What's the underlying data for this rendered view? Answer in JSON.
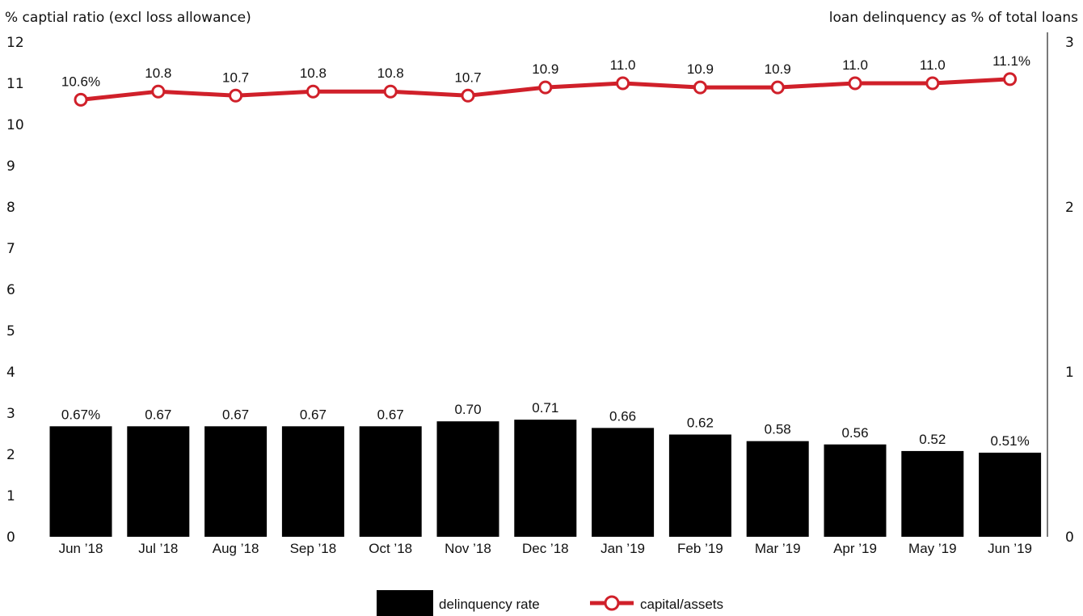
{
  "chart_data": {
    "type": "bar",
    "title": "",
    "categories": [
      "Jun ’18",
      "Jul ’18",
      "Aug ’18",
      "Sep ’18",
      "Oct ’18",
      "Nov ’18",
      "Dec ’18",
      "Jan ’19",
      "Feb ’19",
      "Mar ’19",
      "Apr ’19",
      "May ’19",
      "Jun ’19"
    ],
    "series": [
      {
        "name": "delinquency rate",
        "type": "bar",
        "axis": "right",
        "color": "#000000",
        "values": [
          0.67,
          0.67,
          0.67,
          0.67,
          0.67,
          0.7,
          0.71,
          0.66,
          0.62,
          0.58,
          0.56,
          0.52,
          0.51
        ],
        "labels": [
          "0.67%",
          "0.67",
          "0.67",
          "0.67",
          "0.67",
          "0.70",
          "0.71",
          "0.66",
          "0.62",
          "0.58",
          "0.56",
          "0.52",
          "0.51%"
        ]
      },
      {
        "name": "capital/assets",
        "type": "line",
        "axis": "left",
        "color": "#d0202a",
        "values": [
          10.6,
          10.8,
          10.7,
          10.8,
          10.8,
          10.7,
          10.9,
          11.0,
          10.9,
          10.9,
          11.0,
          11.0,
          11.1
        ],
        "labels": [
          "10.6%",
          "10.8",
          "10.7",
          "10.8",
          "10.8",
          "10.7",
          "10.9",
          "11.0",
          "10.9",
          "10.9",
          "11.0",
          "11.0",
          "11.1%"
        ]
      }
    ],
    "ylabel": "% captial ratio (excl loss allowance)",
    "ylim": [
      0,
      12
    ],
    "yticks": [
      "0",
      "1",
      "2",
      "3",
      "4",
      "5",
      "6",
      "7",
      "8",
      "9",
      "10",
      "11",
      "12"
    ],
    "y2label": "loan delinquency as % of total loans",
    "y2lim": [
      0,
      3
    ],
    "y2ticks": [
      "0",
      "1",
      "2",
      "3"
    ],
    "grid": false,
    "legend_position": "bottom-center"
  }
}
